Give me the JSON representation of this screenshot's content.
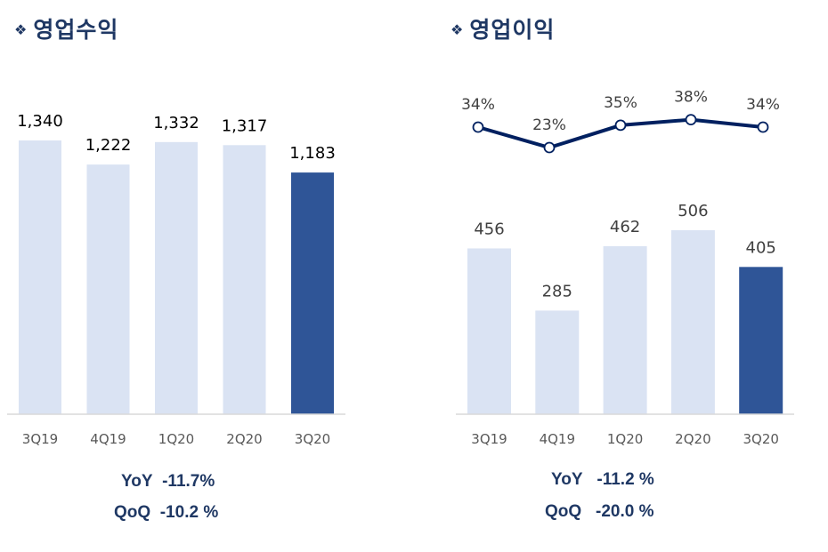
{
  "chart_data": [
    {
      "type": "bar",
      "title": "영업수익",
      "categories": [
        "3Q19",
        "4Q19",
        "1Q20",
        "2Q20",
        "3Q20"
      ],
      "values": [
        1340,
        1222,
        1332,
        1317,
        1183
      ],
      "value_labels": [
        "1,340",
        "1,222",
        "1,332",
        "1,317",
        "1,183"
      ],
      "ylim": [
        0,
        1340
      ],
      "grid": false,
      "colors": {
        "bar": "#dae3f3",
        "highlight": "#2f5597",
        "axis": "#d9d9d9"
      },
      "stats": [
        {
          "label": "YoY",
          "value": "-11.7%"
        },
        {
          "label": "QoQ",
          "value": "-10.2 %"
        }
      ]
    },
    {
      "type": "bar+line",
      "title": "영업이익",
      "categories": [
        "3Q19",
        "4Q19",
        "1Q20",
        "2Q20",
        "3Q20"
      ],
      "values": [
        456,
        285,
        462,
        506,
        405
      ],
      "value_labels": [
        "456",
        "285",
        "462",
        "506",
        "405"
      ],
      "line_values": [
        34,
        23,
        35,
        38,
        34
      ],
      "line_labels": [
        "34%",
        "23%",
        "35%",
        "38%",
        "34%"
      ],
      "ylim": [
        0,
        506
      ],
      "grid": false,
      "colors": {
        "bar": "#dae3f3",
        "highlight": "#2f5597",
        "line": "#002060",
        "axis": "#d9d9d9"
      },
      "stats": [
        {
          "label": "YoY",
          "value": "-11.2 %"
        },
        {
          "label": "QoQ",
          "value": "-20.0 %"
        }
      ]
    }
  ],
  "title_mark": "❖"
}
